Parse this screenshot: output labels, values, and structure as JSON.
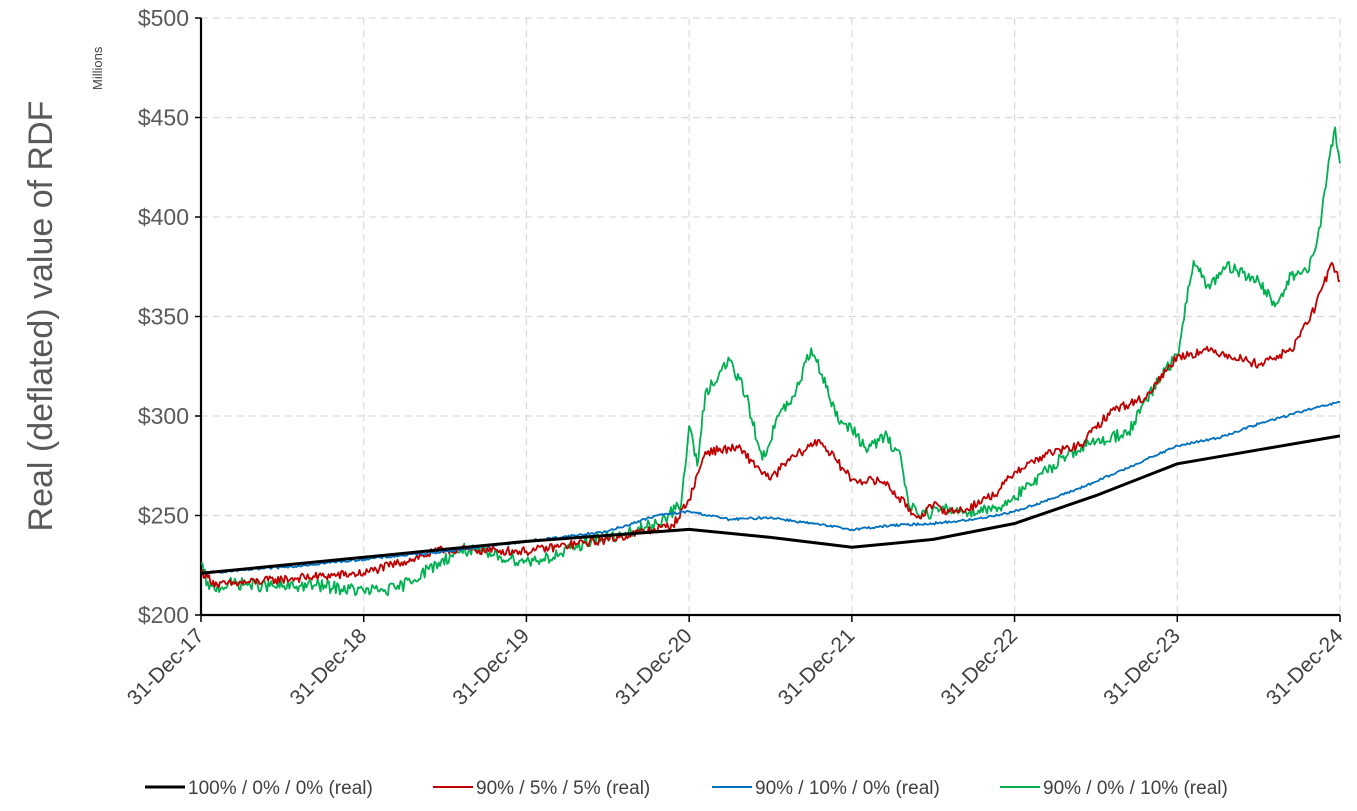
{
  "chart_data": {
    "type": "line",
    "title": "",
    "ylabel": "Real (deflated) value of RDF",
    "yunit": "Millions",
    "xlabel": "",
    "ylim": [
      200,
      500
    ],
    "yticks": [
      "$200",
      "$250",
      "$300",
      "$350",
      "$400",
      "$450",
      "$500"
    ],
    "ytick_values": [
      200,
      250,
      300,
      350,
      400,
      450,
      500
    ],
    "xticks": [
      "31-Dec-17",
      "31-Dec-18",
      "31-Dec-19",
      "31-Dec-20",
      "31-Dec-21",
      "31-Dec-22",
      "31-Dec-23",
      "31-Dec-24"
    ],
    "grid": true,
    "legend_position": "bottom",
    "series": [
      {
        "name": "100% / 0% / 0% (real)",
        "color": "#000000",
        "x": [
          2018.0,
          2018.5,
          2019.0,
          2019.5,
          2020.0,
          2020.5,
          2021.0,
          2021.5,
          2022.0,
          2022.5,
          2023.0,
          2023.5,
          2024.0,
          2024.5,
          2025.0
        ],
        "values": [
          221,
          225,
          229,
          233,
          237,
          240,
          243,
          239,
          234,
          238,
          246,
          260,
          276,
          283,
          290
        ]
      },
      {
        "name": "90% / 5% / 5% (real)",
        "color": "#c00000",
        "x": [
          2018.0,
          2018.1,
          2018.5,
          2019.0,
          2019.5,
          2020.0,
          2020.5,
          2020.9,
          2021.0,
          2021.1,
          2021.3,
          2021.5,
          2021.6,
          2021.8,
          2022.0,
          2022.2,
          2022.4,
          2022.5,
          2022.6,
          2022.7,
          2022.9,
          2023.0,
          2023.2,
          2023.4,
          2023.6,
          2023.8,
          2024.0,
          2024.2,
          2024.3,
          2024.5,
          2024.7,
          2024.85,
          2024.95,
          2025.0
        ],
        "values": [
          222,
          215,
          218,
          221,
          233,
          232,
          238,
          245,
          258,
          282,
          284,
          268,
          277,
          288,
          268,
          267,
          249,
          255,
          252,
          253,
          262,
          272,
          281,
          285,
          303,
          309,
          330,
          333,
          331,
          326,
          333,
          355,
          377,
          368
        ]
      },
      {
        "name": "90% / 10% / 0% (real)",
        "color": "#0070c0",
        "x": [
          2018.0,
          2018.5,
          2019.0,
          2019.5,
          2020.0,
          2020.5,
          2020.8,
          2021.0,
          2021.25,
          2021.5,
          2021.75,
          2022.0,
          2022.25,
          2022.5,
          2022.75,
          2023.0,
          2023.25,
          2023.5,
          2023.75,
          2024.0,
          2024.25,
          2024.5,
          2024.75,
          2025.0
        ],
        "values": [
          221,
          224,
          228,
          232,
          237,
          242,
          250,
          252,
          248,
          249,
          246,
          243,
          245,
          246,
          248,
          252,
          259,
          267,
          276,
          285,
          289,
          296,
          302,
          307
        ]
      },
      {
        "name": "90% / 0% / 10% (real)",
        "color": "#00b050",
        "x": [
          2018.0,
          2018.05,
          2018.2,
          2018.5,
          2018.7,
          2019.0,
          2019.2,
          2019.4,
          2019.6,
          2019.8,
          2020.0,
          2020.2,
          2020.4,
          2020.6,
          2020.8,
          2020.95,
          2021.0,
          2021.05,
          2021.1,
          2021.25,
          2021.35,
          2021.45,
          2021.55,
          2021.65,
          2021.75,
          2021.85,
          2021.9,
          2022.0,
          2022.1,
          2022.2,
          2022.3,
          2022.35,
          2022.45,
          2022.55,
          2022.7,
          2022.9,
          2023.1,
          2023.3,
          2023.5,
          2023.7,
          2023.9,
          2024.0,
          2024.1,
          2024.2,
          2024.3,
          2024.5,
          2024.6,
          2024.7,
          2024.8,
          2024.88,
          2024.93,
          2024.97,
          2025.0
        ],
        "values": [
          226,
          213,
          216,
          214,
          215,
          212,
          213,
          223,
          233,
          230,
          227,
          230,
          238,
          240,
          246,
          255,
          295,
          275,
          312,
          328,
          310,
          278,
          300,
          310,
          334,
          315,
          300,
          293,
          283,
          290,
          280,
          255,
          251,
          253,
          252,
          254,
          265,
          280,
          287,
          292,
          320,
          330,
          378,
          364,
          375,
          368,
          355,
          371,
          372,
          395,
          428,
          445,
          427
        ]
      }
    ]
  }
}
